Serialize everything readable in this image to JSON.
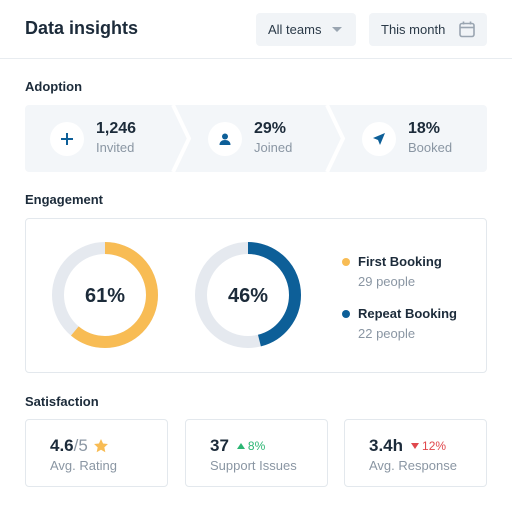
{
  "header": {
    "title": "Data insights",
    "team_select": "All teams",
    "period_select": "This month"
  },
  "adoption": {
    "title": "Adoption",
    "stats": [
      {
        "value": "1,246",
        "label": "Invited",
        "icon": "plus-icon"
      },
      {
        "value": "29%",
        "label": "Joined",
        "icon": "user-icon"
      },
      {
        "value": "18%",
        "label": "Booked",
        "icon": "send-icon"
      }
    ]
  },
  "engagement": {
    "title": "Engagement",
    "donuts": [
      {
        "label": "61%",
        "fraction": 0.61,
        "color": "#f8bc54"
      },
      {
        "label": "46%",
        "fraction": 0.46,
        "color": "#0d5f98"
      }
    ],
    "legend": [
      {
        "name": "First Booking",
        "count": "29 people",
        "color": "#f8bc54"
      },
      {
        "name": "Repeat Booking",
        "count": "22 people",
        "color": "#0d5f98"
      }
    ],
    "track_color": "#e5e9ef"
  },
  "satisfaction": {
    "title": "Satisfaction",
    "rating": {
      "value": "4.6",
      "denominator": "/5",
      "label": "Avg. Rating",
      "icon": "star-icon"
    },
    "support": {
      "value": "37",
      "delta": "8%",
      "direction": "up",
      "label": "Support Issues"
    },
    "response": {
      "value": "3.4h",
      "delta": "12%",
      "direction": "down",
      "label": "Avg. Response"
    }
  }
}
